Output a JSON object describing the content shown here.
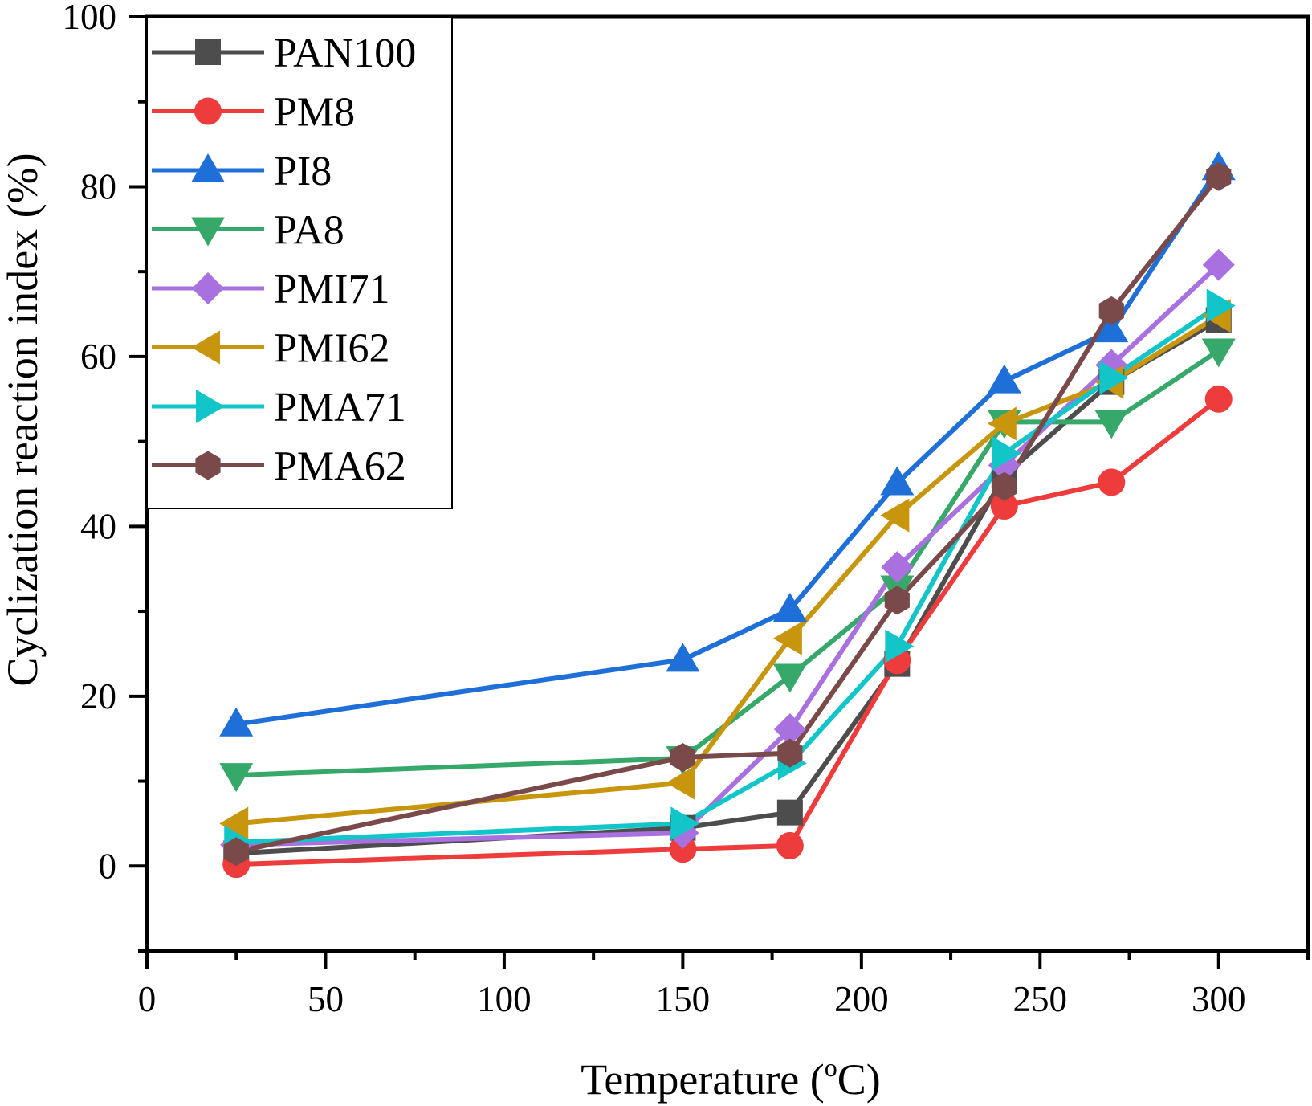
{
  "chart_data": {
    "type": "line",
    "title": "",
    "xlabel": "Temperature (°C)",
    "xlabel_main": "Temperature (",
    "xlabel_sup": "o",
    "xlabel_tail": "C)",
    "ylabel": "Cyclization reaction index (%)",
    "xlim": [
      0,
      325
    ],
    "ylim": [
      -10,
      100
    ],
    "x_ticks": [
      0,
      50,
      100,
      150,
      200,
      250,
      300
    ],
    "x_minor_ticks": [
      25,
      75,
      125,
      175,
      225,
      275,
      325
    ],
    "y_ticks": [
      0,
      20,
      40,
      60,
      80,
      100
    ],
    "y_minor_ticks": [
      -10,
      10,
      30,
      50,
      70,
      90
    ],
    "grid": false,
    "legend_position": "top-left",
    "x": [
      25,
      150,
      180,
      210,
      240,
      270,
      300
    ],
    "series": [
      {
        "name": "PAN100",
        "color": "#4d4d4d",
        "marker": "square",
        "values": [
          1.5,
          4.5,
          6.3,
          23.8,
          46.0,
          57.0,
          64.3
        ]
      },
      {
        "name": "PM8",
        "color": "#ee3b3b",
        "marker": "circle",
        "values": [
          0.2,
          2.0,
          2.4,
          24.2,
          42.4,
          45.2,
          55.0
        ]
      },
      {
        "name": "PI8",
        "color": "#1f6fd9",
        "marker": "triangle-up",
        "values": [
          16.7,
          24.3,
          30.2,
          45.1,
          57.1,
          63.1,
          82.2
        ]
      },
      {
        "name": "PA8",
        "color": "#35a86a",
        "marker": "triangle-down",
        "values": [
          10.7,
          12.7,
          22.4,
          32.8,
          52.3,
          52.3,
          60.7
        ]
      },
      {
        "name": "PMI71",
        "color": "#a970e0",
        "marker": "diamond",
        "values": [
          2.5,
          3.9,
          16.1,
          35.2,
          47.2,
          59.0,
          70.8
        ]
      },
      {
        "name": "PMI62",
        "color": "#c8960c",
        "marker": "triangle-left",
        "values": [
          5.0,
          9.8,
          26.8,
          41.3,
          52.1,
          57.0,
          64.8
        ]
      },
      {
        "name": "PMA71",
        "color": "#12c5c9",
        "marker": "triangle-right",
        "values": [
          2.8,
          5.0,
          12.1,
          25.9,
          48.6,
          57.5,
          66.0
        ]
      },
      {
        "name": "PMA62",
        "color": "#7a4a4a",
        "marker": "hexagon",
        "values": [
          1.7,
          12.8,
          13.3,
          31.3,
          44.7,
          65.4,
          81.2
        ]
      }
    ]
  }
}
